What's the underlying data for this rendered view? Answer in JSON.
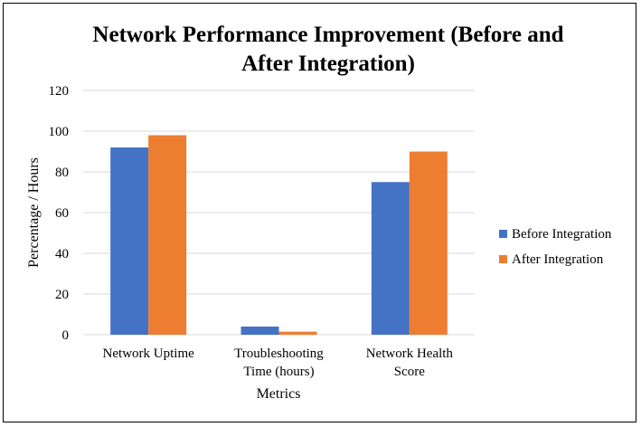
{
  "chart_data": {
    "type": "bar",
    "title": "Network Performance Improvement (Before and After Integration)",
    "title_lines": [
      "Network Performance Improvement (Before and",
      "After Integration)"
    ],
    "xlabel": "Metrics",
    "ylabel": "Percentage / Hours",
    "categories": [
      "Network Uptime",
      "Troubleshooting Time (hours)",
      "Network Health Score"
    ],
    "category_lines": [
      [
        "Network Uptime"
      ],
      [
        "Troubleshooting",
        "Time (hours)"
      ],
      [
        "Network Health",
        "Score"
      ]
    ],
    "series": [
      {
        "name": "Before Integration",
        "color": "#4472c4",
        "values": [
          92,
          4,
          75
        ]
      },
      {
        "name": "After Integration",
        "color": "#ed7d31",
        "values": [
          98,
          1.5,
          90
        ]
      }
    ],
    "ylim": [
      0,
      120
    ],
    "yticks": [
      0,
      20,
      40,
      60,
      80,
      100,
      120
    ],
    "grid": true,
    "legend_position": "right"
  }
}
